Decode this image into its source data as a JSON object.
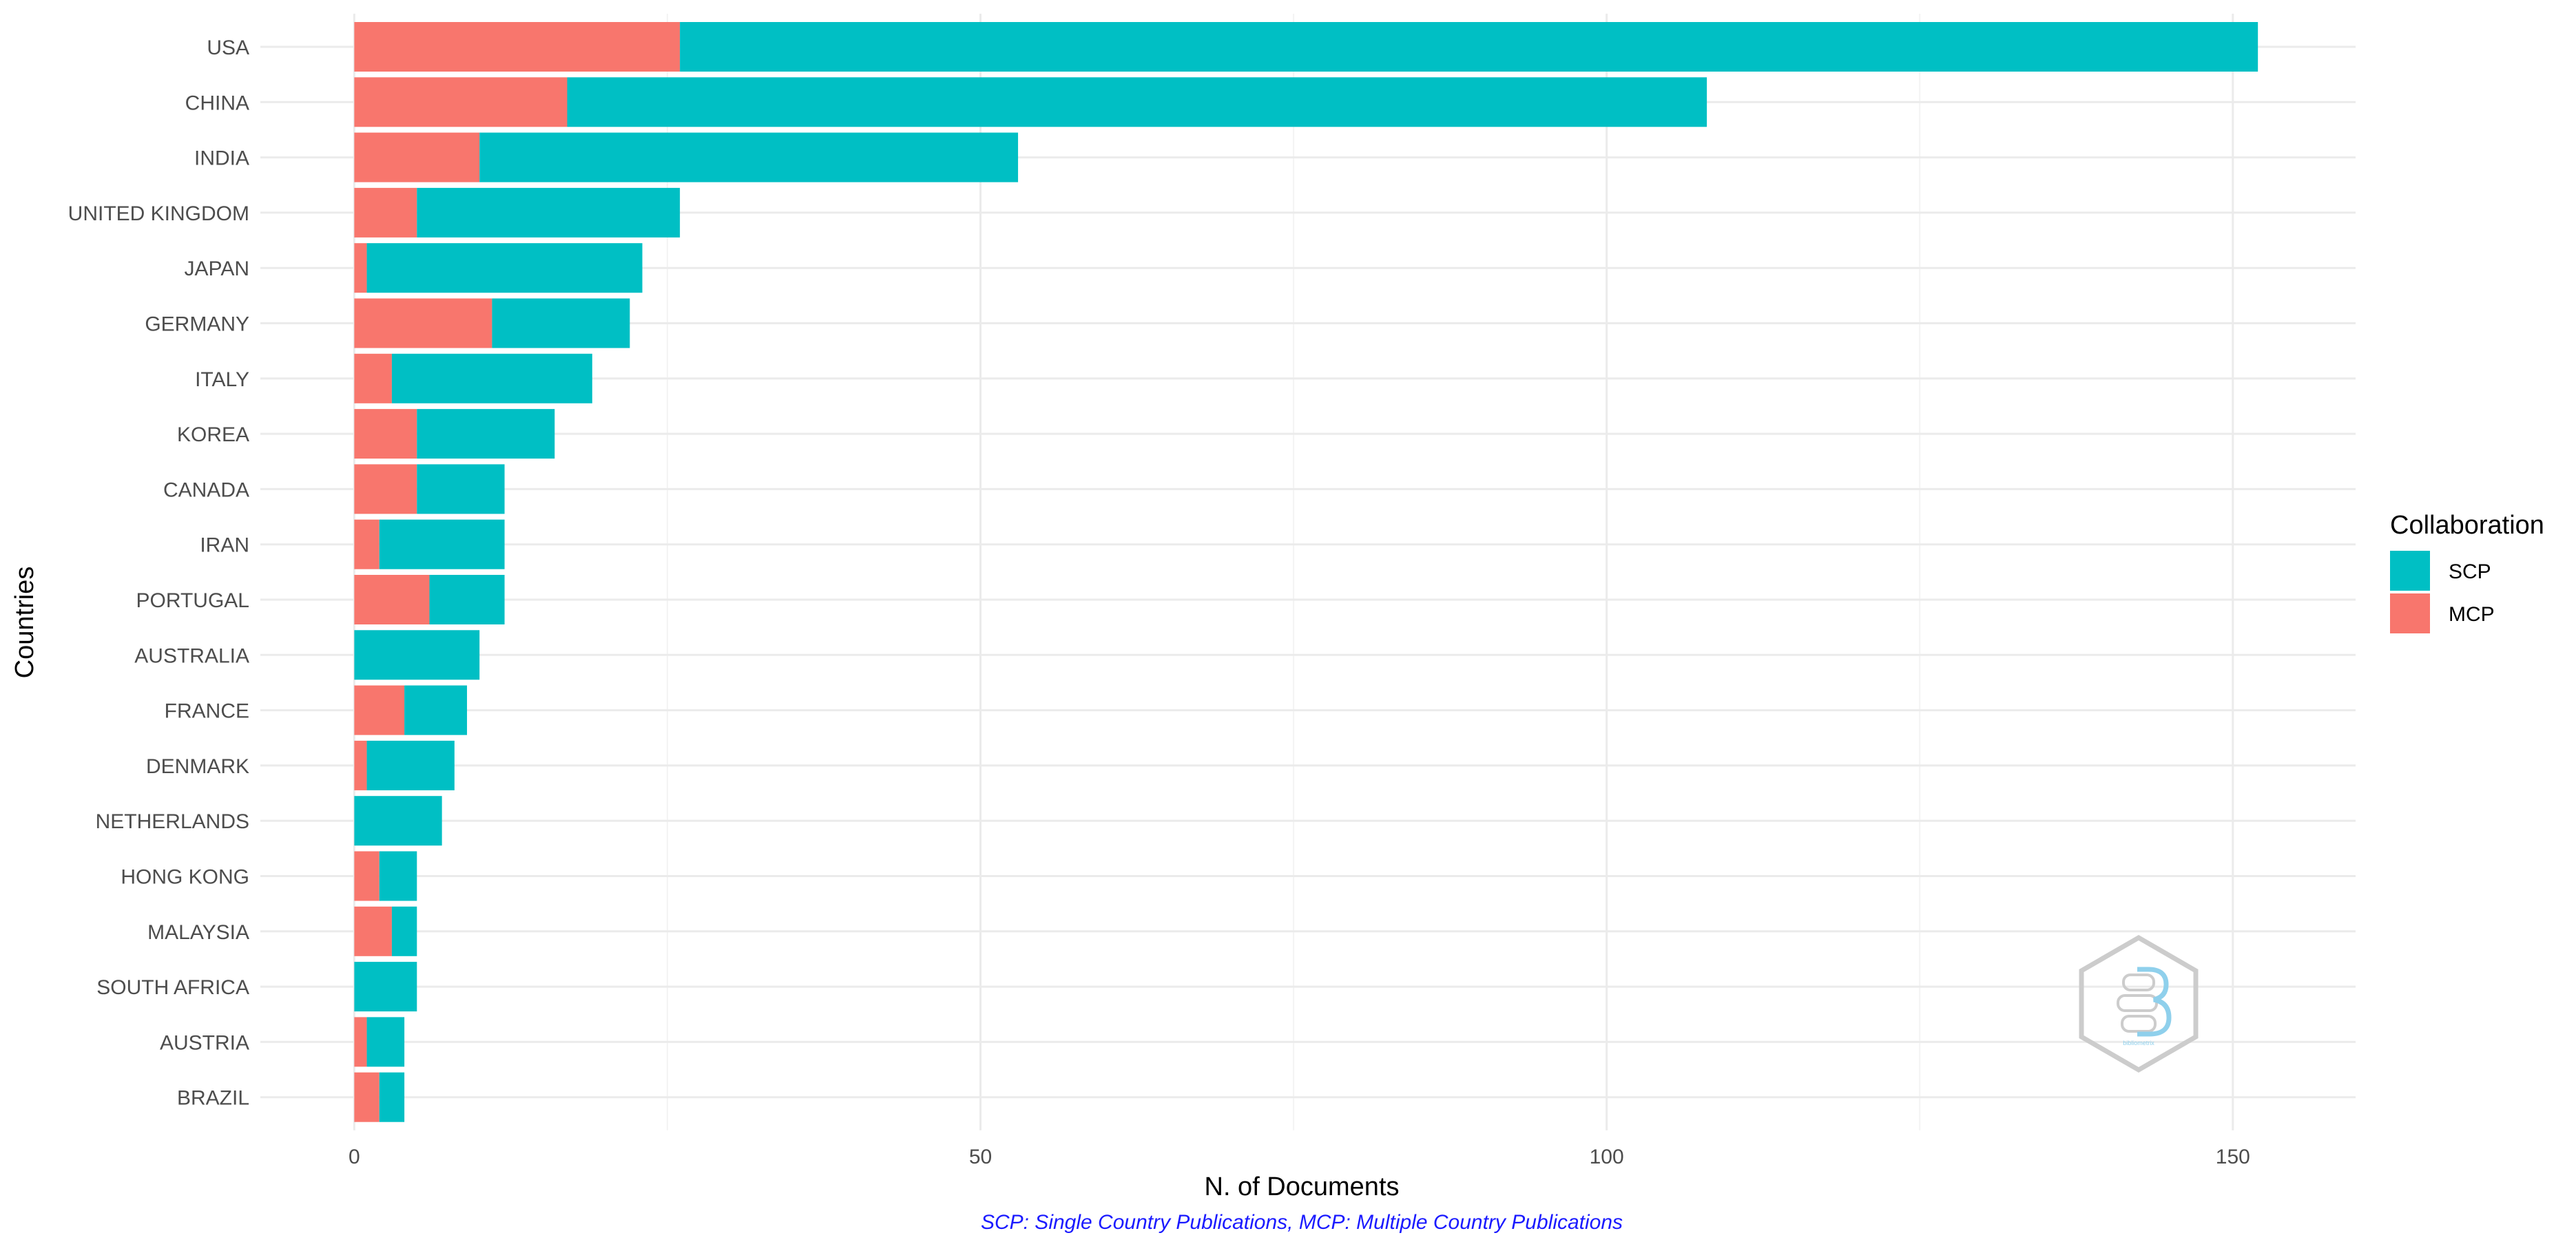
{
  "chart_data": {
    "type": "bar",
    "orientation": "horizontal",
    "stacked": true,
    "categories": [
      "USA",
      "CHINA",
      "INDIA",
      "UNITED KINGDOM",
      "JAPAN",
      "GERMANY",
      "ITALY",
      "KOREA",
      "CANADA",
      "IRAN",
      "PORTUGAL",
      "AUSTRALIA",
      "FRANCE",
      "DENMARK",
      "NETHERLANDS",
      "HONG KONG",
      "MALAYSIA",
      "SOUTH AFRICA",
      "AUSTRIA",
      "BRAZIL"
    ],
    "series": [
      {
        "name": "MCP",
        "color": "#F8766D",
        "values": [
          26,
          17,
          10,
          5,
          1,
          11,
          3,
          5,
          5,
          2,
          6,
          0,
          4,
          1,
          0,
          2,
          3,
          0,
          1,
          2
        ]
      },
      {
        "name": "SCP",
        "color": "#00BFC4",
        "values": [
          126,
          91,
          43,
          21,
          22,
          11,
          16,
          11,
          7,
          10,
          6,
          10,
          5,
          7,
          7,
          3,
          2,
          5,
          3,
          2
        ]
      }
    ],
    "xlabel": "N. of Documents",
    "ylabel": "Countries",
    "xlim": [
      -7.5,
      159.8
    ],
    "xticks": [
      0,
      50,
      100,
      150
    ],
    "grid": true,
    "legend": {
      "title": "Collaboration",
      "placement": "right",
      "order": [
        "SCP",
        "MCP"
      ]
    },
    "caption": "SCP: Single Country Publications, MCP: Multiple Country Publications"
  },
  "colors": {
    "background": "#ffffff",
    "grid_major": "#ebebeb",
    "grid_minor": "#f4f4f4",
    "tick_text": "#4d4d4d",
    "caption": "#1a1aff",
    "logo_outline": "#cccccc",
    "logo_accent": "#8fd0ec"
  },
  "watermark": {
    "icon": "bibliometrix-hexagon-logo",
    "text": "bibliometrix"
  }
}
